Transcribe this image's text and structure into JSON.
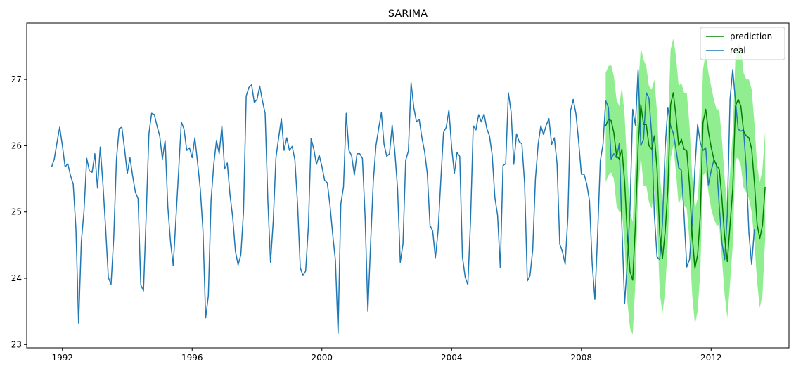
{
  "chart_data": {
    "type": "line",
    "title": "SARIMA",
    "xlabel": "",
    "ylabel": "",
    "xlim": [
      1990.9,
      2014.4
    ],
    "ylim": [
      22.95,
      27.85
    ],
    "x_ticks": [
      1992,
      1996,
      2000,
      2004,
      2008,
      2012
    ],
    "y_ticks": [
      23,
      24,
      25,
      26,
      27
    ],
    "grid": false,
    "legend_position": "top-right",
    "colors": {
      "real": "#1f77b4",
      "prediction": "#008000",
      "confidence_band": "#90ee90"
    },
    "series": [
      {
        "name": "real",
        "x_start": 1991.667,
        "step": 0.08333,
        "values": [
          25.68,
          25.8,
          26.05,
          26.28,
          26.0,
          25.68,
          25.73,
          25.55,
          25.42,
          24.75,
          23.32,
          24.55,
          25.02,
          25.81,
          25.62,
          25.6,
          25.88,
          25.36,
          25.98,
          25.42,
          24.75,
          24.01,
          23.91,
          24.62,
          25.8,
          26.26,
          26.28,
          25.95,
          25.58,
          25.82,
          25.54,
          25.3,
          25.2,
          23.9,
          23.81,
          24.95,
          26.18,
          26.49,
          26.47,
          26.3,
          26.15,
          25.8,
          26.08,
          25.08,
          24.55,
          24.19,
          24.9,
          25.62,
          26.36,
          26.25,
          25.93,
          25.97,
          25.82,
          26.12,
          25.75,
          25.35,
          24.72,
          23.4,
          23.74,
          25.18,
          25.72,
          26.08,
          25.88,
          26.3,
          25.65,
          25.74,
          25.26,
          24.92,
          24.41,
          24.2,
          24.35,
          25.0,
          26.75,
          26.88,
          26.92,
          26.65,
          26.7,
          26.9,
          26.68,
          26.49,
          25.18,
          24.24,
          24.86,
          25.82,
          26.12,
          26.41,
          25.93,
          26.12,
          25.93,
          25.99,
          25.79,
          25.12,
          24.16,
          24.04,
          24.11,
          24.78,
          26.11,
          25.95,
          25.72,
          25.86,
          25.69,
          25.48,
          25.44,
          25.1,
          24.66,
          24.27,
          23.17,
          25.12,
          25.38,
          26.49,
          25.93,
          25.85,
          25.56,
          25.88,
          25.88,
          25.81,
          24.92,
          23.5,
          24.5,
          25.45,
          26.0,
          26.26,
          26.5,
          26.02,
          25.84,
          25.88,
          26.31,
          25.9,
          25.35,
          24.24,
          24.52,
          25.78,
          25.92,
          26.95,
          26.58,
          26.36,
          26.4,
          26.12,
          25.91,
          25.58,
          24.8,
          24.71,
          24.31,
          24.72,
          25.48,
          26.2,
          26.28,
          26.54,
          25.98,
          25.58,
          25.9,
          25.84,
          24.32,
          24.02,
          23.9,
          24.87,
          26.3,
          26.24,
          26.47,
          26.36,
          26.48,
          26.26,
          26.15,
          25.86,
          25.22,
          24.95,
          24.16,
          25.7,
          25.73,
          26.8,
          26.51,
          25.72,
          26.18,
          26.06,
          26.03,
          25.43,
          23.96,
          24.04,
          24.43,
          25.5,
          26.02,
          26.3,
          26.17,
          26.31,
          26.41,
          26.02,
          26.12,
          25.73,
          24.52,
          24.4,
          24.21,
          24.92,
          26.53,
          26.7,
          26.48,
          26.06,
          25.57,
          25.57,
          25.42,
          25.17,
          24.22,
          23.68,
          24.65,
          25.77,
          26.02,
          26.68,
          26.58,
          25.8,
          25.88,
          25.82,
          26.03,
          24.77,
          23.62,
          24.24,
          25.04,
          26.55,
          26.31,
          27.15,
          26.0,
          26.1,
          26.8,
          26.72,
          26.17,
          24.96,
          24.32,
          24.28,
          24.83,
          25.97,
          26.58,
          26.3,
          26.19,
          25.95,
          25.67,
          25.63,
          24.94,
          24.17,
          24.28,
          24.83,
          25.65,
          26.32,
          26.05,
          25.93,
          25.97,
          25.41,
          25.62,
          25.78,
          25.72,
          25.1,
          24.54,
          24.28,
          24.96,
          26.7,
          27.15,
          26.68,
          26.25,
          26.22,
          26.24,
          25.66,
          24.68,
          24.21,
          24.74
        ]
      },
      {
        "name": "prediction",
        "x_start": 2008.75,
        "step": 0.08333,
        "values": [
          26.3,
          26.4,
          26.38,
          26.2,
          25.85,
          25.8,
          25.95,
          25.45,
          24.65,
          24.1,
          23.97,
          24.82,
          26.0,
          26.62,
          26.32,
          26.32,
          26.0,
          25.95,
          26.15,
          25.65,
          24.65,
          24.3,
          24.7,
          25.35,
          26.62,
          26.8,
          26.45,
          26.0,
          26.1,
          25.95,
          25.92,
          25.4,
          24.65,
          24.15,
          24.35,
          24.95,
          26.35,
          26.55,
          26.22,
          25.98,
          25.8,
          25.7,
          25.65,
          25.2,
          24.62,
          24.25,
          24.8,
          25.35,
          26.6,
          26.7,
          26.6,
          26.22,
          26.15,
          26.12,
          25.95,
          25.45,
          24.82,
          24.6,
          24.8,
          25.38
        ]
      }
    ],
    "confidence_band": {
      "x_start": 2008.75,
      "step": 0.08333,
      "lower": [
        25.45,
        25.55,
        25.6,
        25.5,
        25.1,
        25.0,
        25.0,
        24.5,
        23.65,
        23.25,
        23.15,
        23.95,
        25.3,
        25.85,
        25.4,
        25.4,
        25.15,
        25.05,
        25.35,
        24.85,
        23.78,
        23.47,
        23.8,
        24.55,
        25.8,
        26.0,
        25.6,
        25.1,
        25.25,
        25.1,
        25.05,
        24.55,
        23.75,
        23.3,
        23.5,
        24.1,
        25.55,
        25.6,
        25.3,
        25.05,
        24.9,
        24.8,
        24.8,
        24.3,
        23.75,
        23.4,
        23.92,
        24.5,
        25.8,
        25.82,
        25.7,
        25.37,
        25.3,
        25.2,
        25.0,
        24.55,
        23.95,
        23.55,
        23.75,
        24.6
      ],
      "upper": [
        27.1,
        27.2,
        27.22,
        27.05,
        26.7,
        26.6,
        26.9,
        26.45,
        25.65,
        25.0,
        24.85,
        25.75,
        26.9,
        27.48,
        27.3,
        27.2,
        26.9,
        26.85,
        27.0,
        26.5,
        25.55,
        25.15,
        25.6,
        26.2,
        27.45,
        27.62,
        27.35,
        26.9,
        26.95,
        26.8,
        26.8,
        26.3,
        25.55,
        25.05,
        25.2,
        25.85,
        27.15,
        27.4,
        27.1,
        26.9,
        26.7,
        26.55,
        26.55,
        26.1,
        25.5,
        25.1,
        25.6,
        26.2,
        27.35,
        27.55,
        27.5,
        27.1,
        27.0,
        27.0,
        26.85,
        26.35,
        25.7,
        25.45,
        25.65,
        26.22
      ]
    }
  }
}
